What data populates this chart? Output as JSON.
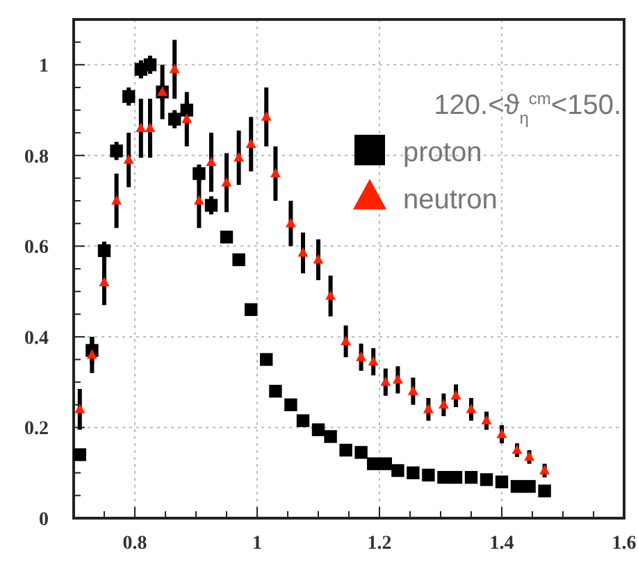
{
  "chart_data": {
    "type": "scatter",
    "xlim": [
      0.7,
      1.6
    ],
    "ylim": [
      0,
      1.1
    ],
    "xticks": [
      {
        "value": 0.75,
        "label": null
      },
      0.8,
      {
        "value": 0.85,
        "label": null
      },
      {
        "value": 0.9,
        "label": null
      },
      {
        "value": 0.95,
        "label": null
      },
      1,
      {
        "value": 1.05,
        "label": null
      },
      {
        "value": 1.1,
        "label": null
      },
      {
        "value": 1.15,
        "label": null
      },
      1.2,
      {
        "value": 1.25,
        "label": null
      },
      {
        "value": 1.3,
        "label": null
      },
      {
        "value": 1.35,
        "label": null
      },
      1.4,
      {
        "value": 1.45,
        "label": null
      },
      {
        "value": 1.5,
        "label": null
      },
      {
        "value": 1.55,
        "label": null
      },
      1.6
    ],
    "yticks": [
      0,
      {
        "value": 0.05,
        "label": null
      },
      {
        "value": 0.1,
        "label": null
      },
      {
        "value": 0.15,
        "label": null
      },
      0.2,
      {
        "value": 0.25,
        "label": null
      },
      {
        "value": 0.3,
        "label": null
      },
      {
        "value": 0.35,
        "label": null
      },
      0.4,
      {
        "value": 0.45,
        "label": null
      },
      {
        "value": 0.5,
        "label": null
      },
      {
        "value": 0.55,
        "label": null
      },
      0.6,
      {
        "value": 0.65,
        "label": null
      },
      {
        "value": 0.7,
        "label": null
      },
      {
        "value": 0.75,
        "label": null
      },
      0.8,
      {
        "value": 0.85,
        "label": null
      },
      {
        "value": 0.9,
        "label": null
      },
      {
        "value": 0.95,
        "label": null
      },
      1,
      {
        "value": 1.05,
        "label": null
      }
    ],
    "grid": true,
    "legend": "top right",
    "annotations": [
      "120.<ϑ$_{η}$$^{cm}$<150."
    ],
    "x": [
      0.71,
      0.73,
      0.75,
      0.77,
      0.79,
      0.81,
      0.825,
      0.845,
      0.865,
      0.885,
      0.905,
      0.925,
      0.95,
      0.97,
      0.99,
      1.015,
      1.03,
      1.055,
      1.075,
      1.1,
      1.12,
      1.145,
      1.17,
      1.19,
      1.21,
      1.23,
      1.255,
      1.28,
      1.305,
      1.325,
      1.35,
      1.375,
      1.4,
      1.425,
      1.445,
      1.47
    ],
    "series": [
      {
        "name": "proton",
        "color": "#000000",
        "marker": "square",
        "values": [
          0.14,
          0.37,
          0.59,
          0.81,
          0.93,
          0.99,
          1.0,
          0.94,
          0.88,
          0.9,
          0.76,
          0.69,
          0.62,
          0.57,
          0.46,
          0.35,
          0.28,
          0.25,
          0.215,
          0.195,
          0.18,
          0.15,
          0.145,
          0.12,
          0.12,
          0.105,
          0.1,
          0.095,
          0.09,
          0.09,
          0.09,
          0.085,
          0.08,
          0.07,
          0.07,
          0.06
        ],
        "errors": [
          null,
          0.03,
          0.02,
          0.02,
          0.02,
          0.02,
          0.02,
          0.02,
          0.02,
          0.02,
          0.02,
          0.02,
          null,
          null,
          null,
          null,
          null,
          null,
          null,
          null,
          null,
          null,
          null,
          null,
          null,
          null,
          null,
          null,
          null,
          null,
          null,
          null,
          null,
          null,
          null,
          null
        ]
      },
      {
        "name": "neutron",
        "color": "#ff2200",
        "marker": "triangle",
        "values": [
          0.24,
          0.36,
          0.52,
          0.7,
          0.79,
          0.86,
          0.86,
          0.94,
          0.99,
          0.88,
          0.7,
          0.785,
          0.74,
          0.795,
          0.825,
          0.885,
          0.76,
          0.65,
          0.585,
          0.57,
          0.49,
          0.39,
          0.355,
          0.345,
          0.3,
          0.305,
          0.28,
          0.24,
          0.25,
          0.27,
          0.24,
          0.215,
          0.185,
          0.15,
          0.135,
          0.105
        ],
        "errors": [
          0.045,
          0.04,
          0.05,
          0.06,
          0.06,
          0.065,
          0.065,
          0.06,
          0.065,
          0.06,
          0.06,
          0.065,
          0.065,
          0.06,
          0.06,
          0.065,
          0.06,
          0.05,
          0.045,
          0.045,
          0.045,
          0.035,
          0.03,
          0.03,
          0.03,
          0.03,
          0.03,
          0.025,
          0.025,
          0.025,
          0.025,
          0.02,
          0.02,
          0.015,
          0.015,
          0.015
        ]
      }
    ]
  }
}
